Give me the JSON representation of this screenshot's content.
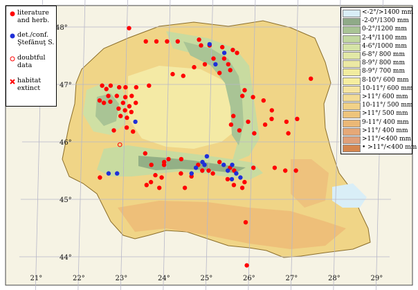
{
  "map": {
    "latitude_labels": [
      "48°",
      "47°",
      "46°",
      "45°",
      "44°"
    ],
    "longitude_labels": [
      "21°",
      "22°",
      "23°",
      "24°",
      "25°",
      "26°",
      "27°",
      "28°",
      "29°"
    ],
    "colors": {
      "background_land": "#f5e9b8",
      "lowland": "#f0d88a",
      "plain": "#f2c977",
      "hills": "#e9d98f",
      "mountain_low": "#c9dca0",
      "mountain_mid": "#9fbf8a",
      "mountain_high": "#7a9a7a",
      "water": "#ccecf5",
      "graticule": "#b9b9c9",
      "red_dot": "#ff0000",
      "blue_dot": "#1f2fd8"
    },
    "records": {
      "literature": [
        [
          23.05,
          47.98
        ],
        [
          23.45,
          47.75
        ],
        [
          23.7,
          47.75
        ],
        [
          23.95,
          47.75
        ],
        [
          24.2,
          47.75
        ],
        [
          24.7,
          47.78
        ],
        [
          24.75,
          47.68
        ],
        [
          24.95,
          47.68
        ],
        [
          25.25,
          47.65
        ],
        [
          25.5,
          47.6
        ],
        [
          25.6,
          47.55
        ],
        [
          25.3,
          47.45
        ],
        [
          25.05,
          47.45
        ],
        [
          24.85,
          47.35
        ],
        [
          24.6,
          47.3
        ],
        [
          25.4,
          47.35
        ],
        [
          25.45,
          47.25
        ],
        [
          25.2,
          47.2
        ],
        [
          24.35,
          47.15
        ],
        [
          24.1,
          47.18
        ],
        [
          27.35,
          47.1
        ],
        [
          22.45,
          46.98
        ],
        [
          22.65,
          46.98
        ],
        [
          22.55,
          46.92
        ],
        [
          22.85,
          46.95
        ],
        [
          23.0,
          46.95
        ],
        [
          23.25,
          46.95
        ],
        [
          23.55,
          46.98
        ],
        [
          22.6,
          46.8
        ],
        [
          22.8,
          46.8
        ],
        [
          23.0,
          46.78
        ],
        [
          23.15,
          46.8
        ],
        [
          22.4,
          46.72
        ],
        [
          22.5,
          46.68
        ],
        [
          22.65,
          46.7
        ],
        [
          22.95,
          46.68
        ],
        [
          23.1,
          46.62
        ],
        [
          23.25,
          46.68
        ],
        [
          22.85,
          46.58
        ],
        [
          23.0,
          46.55
        ],
        [
          23.15,
          46.52
        ],
        [
          22.9,
          46.45
        ],
        [
          23.05,
          46.42
        ],
        [
          22.75,
          46.2
        ],
        [
          23.2,
          46.18
        ],
        [
          23.05,
          46.25
        ],
        [
          25.8,
          46.9
        ],
        [
          25.75,
          46.8
        ],
        [
          26.0,
          46.78
        ],
        [
          26.25,
          46.72
        ],
        [
          26.45,
          46.55
        ],
        [
          25.55,
          46.45
        ],
        [
          25.9,
          46.35
        ],
        [
          25.5,
          46.3
        ],
        [
          26.3,
          46.3
        ],
        [
          26.45,
          46.4
        ],
        [
          26.8,
          46.35
        ],
        [
          26.85,
          46.15
        ],
        [
          27.05,
          46.4
        ],
        [
          26.05,
          46.15
        ],
        [
          25.7,
          46.2
        ],
        [
          23.5,
          45.8
        ],
        [
          24.05,
          45.7
        ],
        [
          24.35,
          45.7
        ],
        [
          23.95,
          45.65
        ],
        [
          23.65,
          45.6
        ],
        [
          23.95,
          45.6
        ],
        [
          24.75,
          45.6
        ],
        [
          25.25,
          45.65
        ],
        [
          25.5,
          45.55
        ],
        [
          25.6,
          45.5
        ],
        [
          26.05,
          45.55
        ],
        [
          26.55,
          45.55
        ],
        [
          26.8,
          45.5
        ],
        [
          27.05,
          45.5
        ],
        [
          24.85,
          45.5
        ],
        [
          25.0,
          45.5
        ],
        [
          25.1,
          45.45
        ],
        [
          24.35,
          45.45
        ],
        [
          23.75,
          45.42
        ],
        [
          23.9,
          45.38
        ],
        [
          25.45,
          45.35
        ],
        [
          25.85,
          45.3
        ],
        [
          25.8,
          45.2
        ],
        [
          25.6,
          45.25
        ],
        [
          22.45,
          45.38
        ],
        [
          24.6,
          45.4
        ],
        [
          23.65,
          45.3
        ],
        [
          23.55,
          45.25
        ],
        [
          23.85,
          45.2
        ],
        [
          24.45,
          45.2
        ],
        [
          25.9,
          44.6
        ],
        [
          25.95,
          43.85
        ]
      ],
      "det_conf": [
        [
          24.95,
          47.7
        ],
        [
          25.3,
          47.55
        ],
        [
          25.1,
          47.35
        ],
        [
          23.25,
          46.35
        ],
        [
          22.65,
          45.45
        ],
        [
          22.85,
          45.45
        ],
        [
          24.7,
          45.55
        ],
        [
          24.85,
          45.65
        ],
        [
          24.95,
          45.75
        ],
        [
          24.9,
          45.6
        ],
        [
          24.6,
          45.45
        ],
        [
          25.35,
          45.6
        ],
        [
          25.55,
          45.6
        ],
        [
          25.45,
          45.5
        ],
        [
          25.65,
          45.45
        ],
        [
          25.75,
          45.38
        ],
        [
          25.55,
          45.35
        ]
      ],
      "doubtful": [
        [
          22.9,
          45.95
        ]
      ]
    }
  },
  "legend": {
    "items": [
      {
        "symbol": "red-dot",
        "line1": "literature",
        "line2": "and herb."
      },
      {
        "symbol": "blue-dot",
        "line1": "det./conf.",
        "line2": "Ştefănuţ S."
      },
      {
        "symbol": "doubtful-circle",
        "line1": "doubtful",
        "line2": "data"
      },
      {
        "symbol": "cross",
        "line1": "habitat",
        "line2": "extinct"
      }
    ]
  },
  "elevation_legend": {
    "rows": [
      {
        "label": "<-2°/>1400 mm",
        "color": "#d9eef7"
      },
      {
        "label": "-2-0°/1300 mm",
        "color": "#8faa88"
      },
      {
        "label": "0-2°/1200 mm",
        "color": "#a9c495"
      },
      {
        "label": "2-4°/1100 mm",
        "color": "#c2d8a0"
      },
      {
        "label": "4-6°/1000 mm",
        "color": "#d5e3a6"
      },
      {
        "label": "6-8°/ 800 mm",
        "color": "#e2e8a6"
      },
      {
        "label": "8-9°/ 800 mm",
        "color": "#ece9a4"
      },
      {
        "label": "8-9°/ 700 mm",
        "color": "#f1ec9f"
      },
      {
        "label": "8-10°/ 600 mm",
        "color": "#f6ee9f"
      },
      {
        "label": "10-11°/ 600 mm",
        "color": "#f5e4a0"
      },
      {
        "label": ">11°/ 600 mm",
        "color": "#f3dc95"
      },
      {
        "label": "10-11°/ 500 mm",
        "color": "#f1d188"
      },
      {
        "label": ">11°/ 500 mm",
        "color": "#eec47c"
      },
      {
        "label": "9-11°/ 400 mm",
        "color": "#ebb876"
      },
      {
        "label": ">11°/ 400 mm",
        "color": "#e6a877"
      },
      {
        "label": ">11°/<400 mm",
        "color": "#e0a07a"
      },
      {
        "label": "• >11°/<400 mm",
        "color": "#d5864f"
      }
    ]
  }
}
